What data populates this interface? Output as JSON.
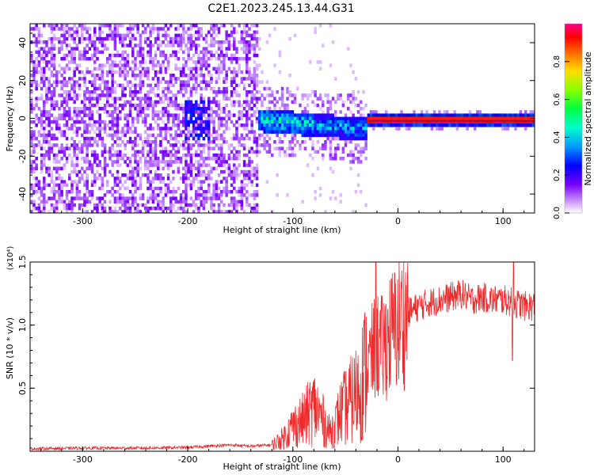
{
  "title": "C2E1.2023.245.13.44.G31",
  "chart_data": [
    {
      "type": "heatmap",
      "xlabel": "Height of straight line (km)",
      "ylabel": "Frequency (Hz)",
      "xlim": [
        -350,
        130
      ],
      "ylim": [
        -50,
        50
      ],
      "xticks": [
        -300,
        -200,
        -100,
        0,
        100
      ],
      "xtick_labels": [
        "-300",
        "-200",
        "-100",
        "0",
        "100"
      ],
      "yticks": [
        -40,
        -20,
        0,
        20,
        40
      ],
      "ytick_labels": [
        "-40",
        "-20",
        "0",
        "20",
        "40"
      ],
      "colorbar": {
        "label": "Normalized spectral amplitude",
        "range": [
          0,
          1
        ],
        "ticks": [
          0.0,
          0.2,
          0.4,
          0.6,
          0.8
        ],
        "tick_labels": [
          "0.0",
          "0.2",
          "0.4",
          "0.6",
          "0.8"
        ],
        "colors": [
          "#ffffff",
          "#9933ff",
          "#0000ff",
          "#00bfff",
          "#00ff7f",
          "#33ff00",
          "#ffff00",
          "#ff7f00",
          "#ff0000",
          "#ff0077"
        ]
      },
      "regions": [
        {
          "x": [
            -350,
            -135
          ],
          "freq_center": 0,
          "freq_spread": 50,
          "amplitude": 0.12,
          "pattern": "broadband noise"
        },
        {
          "x": [
            -135,
            -30
          ],
          "freq_center": -2,
          "freq_spread": 8,
          "amplitude": 0.3,
          "pattern": "spread signal"
        },
        {
          "x": [
            -30,
            130
          ],
          "freq_center": 0,
          "freq_spread": 1,
          "amplitude": 0.95,
          "pattern": "narrow carrier line"
        }
      ],
      "grid": false
    },
    {
      "type": "line",
      "xlabel": "Height of straight line (km)",
      "ylabel": "SNR (10 * v/v)",
      "y_multiplier": "(x10⁴)",
      "xlim": [
        -350,
        130
      ],
      "ylim": [
        0,
        1.5
      ],
      "xticks": [
        -300,
        -200,
        -100,
        0,
        100
      ],
      "xtick_labels": [
        "-300",
        "-200",
        "-100",
        "0",
        "100"
      ],
      "yticks": [
        0.5,
        1.0,
        1.5
      ],
      "ytick_labels": [
        "0.5",
        "1.0",
        "1.5"
      ],
      "line_color": "#ee2a2a",
      "series": [
        {
          "x": [
            -350,
            -300,
            -250,
            -200,
            -180,
            -160,
            -140,
            -120,
            -110,
            -100,
            -90,
            -80,
            -75,
            -70,
            -65,
            -60,
            -55,
            -50,
            -45,
            -40,
            -35,
            -30,
            -25,
            -20,
            -15,
            -10,
            -5,
            0,
            10,
            20,
            30,
            40,
            50,
            60,
            70,
            80,
            90,
            100,
            110,
            120,
            130
          ],
          "y": [
            0.02,
            0.025,
            0.025,
            0.03,
            0.04,
            0.05,
            0.04,
            0.05,
            0.1,
            0.2,
            0.25,
            0.35,
            0.3,
            0.22,
            0.15,
            0.2,
            0.3,
            0.35,
            0.4,
            0.45,
            0.55,
            0.65,
            0.75,
            0.85,
            0.8,
            0.9,
            0.95,
            1.0,
            1.1,
            1.15,
            1.18,
            1.2,
            1.22,
            1.25,
            1.2,
            1.22,
            1.2,
            1.2,
            1.18,
            1.15,
            1.15
          ]
        }
      ],
      "spikes": [
        {
          "x": -21,
          "y": 1.5
        },
        {
          "x": 110,
          "y": 1.52
        },
        {
          "x": 109,
          "y": 0.72
        }
      ],
      "grid": false
    }
  ]
}
